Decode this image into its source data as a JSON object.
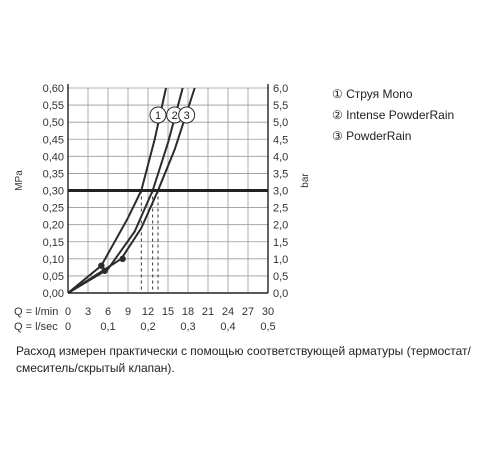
{
  "chart_data": {
    "type": "line",
    "left_axis": {
      "label": "MPa",
      "range": [
        0,
        0.6
      ],
      "ticks": [
        "0,00",
        "0,05",
        "0,10",
        "0,15",
        "0,20",
        "0,25",
        "0,30",
        "0,35",
        "0,40",
        "0,45",
        "0,50",
        "0,55",
        "0,60"
      ]
    },
    "right_axis": {
      "label": "bar",
      "range": [
        0,
        6
      ],
      "ticks": [
        "0,0",
        "0,5",
        "1,0",
        "1,5",
        "2,0",
        "2,5",
        "3,0",
        "3,5",
        "4,0",
        "4,5",
        "5,0",
        "5,5",
        "6,0"
      ]
    },
    "x_axis_lmin": {
      "label": "Q = l/min",
      "range": [
        0,
        30
      ],
      "ticks": [
        "0",
        "3",
        "6",
        "9",
        "12",
        "15",
        "18",
        "21",
        "24",
        "27",
        "30"
      ]
    },
    "x_axis_lsec": {
      "label": "Q = l/sec",
      "range": [
        0,
        0.5
      ],
      "ticks": [
        "0",
        "0,1",
        "0,2",
        "0,3",
        "0,4",
        "0,5"
      ]
    },
    "reference_line": {
      "y": 0.3,
      "label": "3 bar"
    },
    "series": [
      {
        "name": "Струя Mono",
        "marker": "1",
        "x_lmin": [
          0,
          5,
          9,
          11,
          13,
          14.7
        ],
        "y_mpa": [
          0,
          0.08,
          0.22,
          0.3,
          0.45,
          0.6
        ],
        "flow_at_3bar_lmin": 11
      },
      {
        "name": "Intense PowderRain",
        "marker": "2",
        "x_lmin": [
          0,
          6,
          10,
          12.7,
          15,
          17.2
        ],
        "y_mpa": [
          0,
          0.07,
          0.18,
          0.3,
          0.44,
          0.6
        ],
        "flow_at_3bar_lmin": 12.7
      },
      {
        "name": "PowderRain",
        "marker": "3",
        "x_lmin": [
          0,
          8,
          11,
          13.5,
          16,
          19
        ],
        "y_mpa": [
          0,
          0.1,
          0.19,
          0.3,
          0.42,
          0.6
        ],
        "flow_at_3bar_lmin": 13.5
      }
    ],
    "grid": true
  },
  "legend": [
    {
      "marker": "①",
      "label": "Струя Mono"
    },
    {
      "marker": "②",
      "label": "Intense PowderRain"
    },
    {
      "marker": "③",
      "label": "PowderRain"
    }
  ],
  "footnote": "Расход измерен практически с помощью соответствующей арматуры (термостат/смеситель/скрытый клапан)."
}
